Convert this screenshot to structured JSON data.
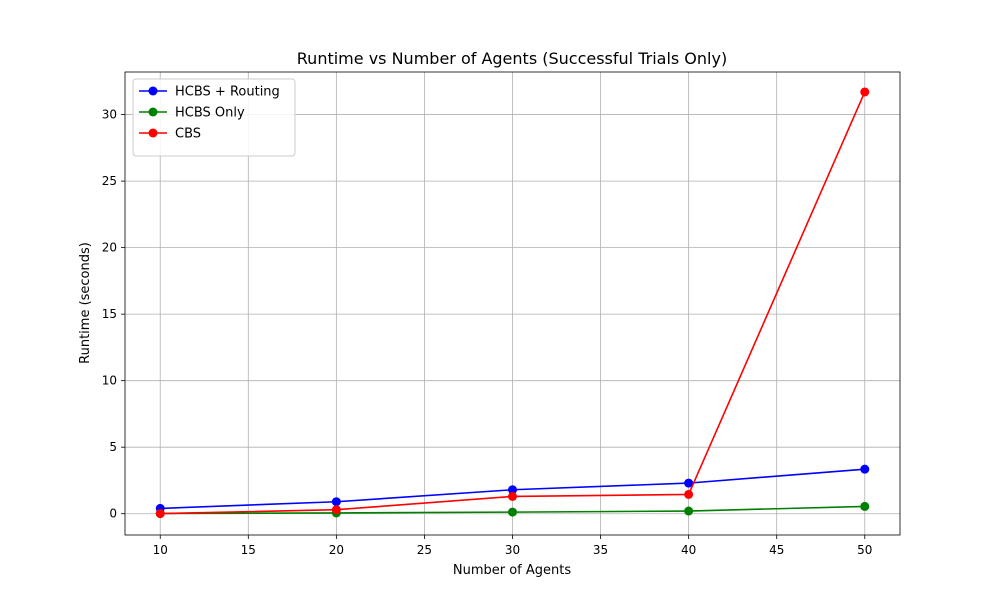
{
  "chart_data": {
    "type": "line",
    "title": "Runtime vs Number of Agents (Successful Trials Only)",
    "xlabel": "Number of Agents",
    "ylabel": "Runtime (seconds)",
    "x": [
      10,
      20,
      30,
      40,
      50
    ],
    "xlim": [
      8,
      52
    ],
    "ylim": [
      -1.6,
      33.2
    ],
    "xticks": [
      10,
      15,
      20,
      25,
      30,
      35,
      40,
      45,
      50
    ],
    "yticks": [
      0,
      5,
      10,
      15,
      20,
      25,
      30
    ],
    "grid": true,
    "legend_position": "top-left",
    "series": [
      {
        "name": "HCBS + Routing",
        "color": "#0000ff",
        "values": [
          0.4,
          0.9,
          1.8,
          2.3,
          3.35
        ]
      },
      {
        "name": "HCBS Only",
        "color": "#008000",
        "values": [
          0.02,
          0.06,
          0.12,
          0.2,
          0.55
        ]
      },
      {
        "name": "CBS",
        "color": "#ff0000",
        "values": [
          0.01,
          0.3,
          1.3,
          1.45,
          31.7
        ]
      }
    ]
  }
}
